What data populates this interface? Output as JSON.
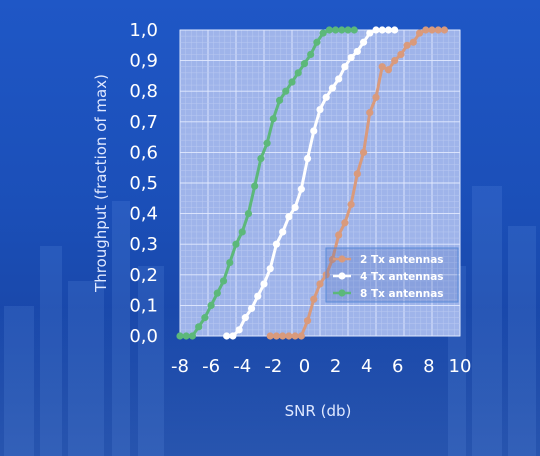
{
  "chart_data": {
    "type": "line",
    "xlabel": "SNR (db)",
    "ylabel": "Throughput (fraction of max)",
    "xlim": [
      -8,
      10
    ],
    "ylim": [
      0,
      1
    ],
    "x_ticks": [
      "-8",
      "-6",
      "-4",
      "-2",
      "0",
      "2",
      "4",
      "6",
      "8",
      "10"
    ],
    "y_ticks": [
      "0,0",
      "0,1",
      "0,2",
      "0,3",
      "0,4",
      "0,5",
      "0,6",
      "0,7",
      "0,8",
      "0,9",
      "1,0"
    ],
    "grid": true,
    "legend_position": "bottom-right",
    "plot_background": "#9fb4ea",
    "series": [
      {
        "name": "2 Tx antennas",
        "color": "#d99a7c",
        "points": [
          [
            -2.2,
            0.0
          ],
          [
            -1.8,
            0.0
          ],
          [
            -1.4,
            0.0
          ],
          [
            -1.0,
            0.0
          ],
          [
            -0.6,
            0.0
          ],
          [
            -0.2,
            0.0
          ],
          [
            0.2,
            0.05
          ],
          [
            0.6,
            0.12
          ],
          [
            1.0,
            0.17
          ],
          [
            1.4,
            0.2
          ],
          [
            1.8,
            0.25
          ],
          [
            2.2,
            0.33
          ],
          [
            2.6,
            0.37
          ],
          [
            3.0,
            0.43
          ],
          [
            3.4,
            0.53
          ],
          [
            3.8,
            0.6
          ],
          [
            4.2,
            0.73
          ],
          [
            4.6,
            0.78
          ],
          [
            5.0,
            0.88
          ],
          [
            5.4,
            0.87
          ],
          [
            5.8,
            0.9
          ],
          [
            6.2,
            0.92
          ],
          [
            6.6,
            0.95
          ],
          [
            7.0,
            0.96
          ],
          [
            7.4,
            0.99
          ],
          [
            7.8,
            1.0
          ],
          [
            8.2,
            1.0
          ],
          [
            8.6,
            1.0
          ],
          [
            9.0,
            1.0
          ]
        ]
      },
      {
        "name": "4 Tx antennas",
        "color": "#ffffff",
        "points": [
          [
            -5.0,
            0.0
          ],
          [
            -4.6,
            0.0
          ],
          [
            -4.2,
            0.02
          ],
          [
            -3.8,
            0.06
          ],
          [
            -3.4,
            0.09
          ],
          [
            -3.0,
            0.13
          ],
          [
            -2.6,
            0.17
          ],
          [
            -2.2,
            0.22
          ],
          [
            -1.8,
            0.3
          ],
          [
            -1.4,
            0.34
          ],
          [
            -1.0,
            0.39
          ],
          [
            -0.6,
            0.42
          ],
          [
            -0.2,
            0.48
          ],
          [
            0.2,
            0.58
          ],
          [
            0.6,
            0.67
          ],
          [
            1.0,
            0.74
          ],
          [
            1.4,
            0.78
          ],
          [
            1.8,
            0.81
          ],
          [
            2.2,
            0.84
          ],
          [
            2.6,
            0.88
          ],
          [
            3.0,
            0.91
          ],
          [
            3.4,
            0.93
          ],
          [
            3.8,
            0.96
          ],
          [
            4.2,
            0.99
          ],
          [
            4.6,
            1.0
          ],
          [
            5.0,
            1.0
          ],
          [
            5.4,
            1.0
          ],
          [
            5.8,
            1.0
          ]
        ]
      },
      {
        "name": "8 Tx antennas",
        "color": "#5cb87a",
        "points": [
          [
            -8.0,
            0.0
          ],
          [
            -7.6,
            0.0
          ],
          [
            -7.2,
            0.0
          ],
          [
            -6.8,
            0.03
          ],
          [
            -6.4,
            0.06
          ],
          [
            -6.0,
            0.1
          ],
          [
            -5.6,
            0.14
          ],
          [
            -5.2,
            0.18
          ],
          [
            -4.8,
            0.24
          ],
          [
            -4.4,
            0.3
          ],
          [
            -4.0,
            0.34
          ],
          [
            -3.6,
            0.4
          ],
          [
            -3.2,
            0.49
          ],
          [
            -2.8,
            0.58
          ],
          [
            -2.4,
            0.63
          ],
          [
            -2.0,
            0.71
          ],
          [
            -1.6,
            0.77
          ],
          [
            -1.2,
            0.8
          ],
          [
            -0.8,
            0.83
          ],
          [
            -0.4,
            0.86
          ],
          [
            0.0,
            0.89
          ],
          [
            0.4,
            0.92
          ],
          [
            0.8,
            0.96
          ],
          [
            1.2,
            0.99
          ],
          [
            1.6,
            1.0
          ],
          [
            2.0,
            1.0
          ],
          [
            2.4,
            1.0
          ],
          [
            2.8,
            1.0
          ],
          [
            3.2,
            1.0
          ]
        ]
      }
    ]
  }
}
